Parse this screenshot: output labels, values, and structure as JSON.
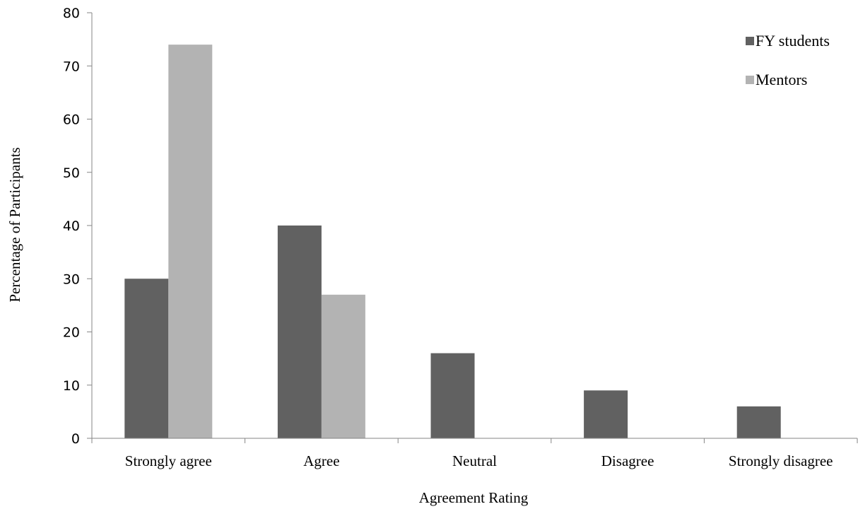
{
  "chart_data": {
    "type": "bar",
    "categories": [
      "Strongly agree",
      "Agree",
      "Neutral",
      "Disagree",
      "Strongly disagree"
    ],
    "series": [
      {
        "name": "FY students",
        "values": [
          30,
          40,
          16,
          9,
          6
        ],
        "color": "#616161"
      },
      {
        "name": "Mentors",
        "values": [
          74,
          27,
          0,
          0,
          0
        ],
        "color": "#b3b3b3"
      }
    ],
    "title": "",
    "xlabel": "Agreement Rating",
    "ylabel": "Percentage of Participants",
    "ylim": [
      0,
      80
    ],
    "yticks": [
      0,
      10,
      20,
      30,
      40,
      50,
      60,
      70,
      80
    ],
    "grid": false,
    "legend_position": "top-right"
  }
}
